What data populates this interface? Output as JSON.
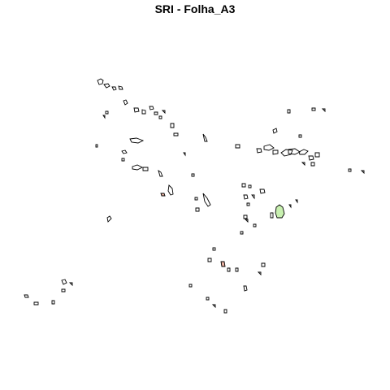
{
  "map": {
    "title": "SRI - Folha_A3",
    "colors": {
      "background": "#ffffff",
      "outline": "#000000",
      "fill_highlight": "#c8f0b0",
      "fill_accent": "#e8b0a0"
    }
  }
}
